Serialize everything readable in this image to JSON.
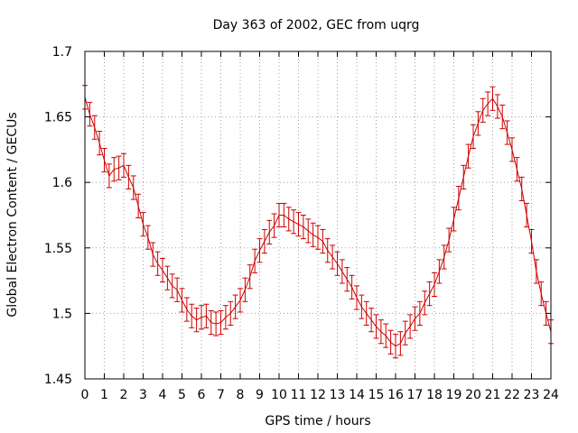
{
  "chart_data": {
    "type": "line",
    "title": "Day 363 of 2002, GEC from uqrg",
    "xlabel": "GPS time / hours",
    "ylabel": "Global Electron Content / GECUs",
    "xlim": [
      0,
      24
    ],
    "ylim": [
      1.45,
      1.7
    ],
    "x_ticks": [
      "0",
      "1",
      "2",
      "3",
      "4",
      "5",
      "6",
      "7",
      "8",
      "9",
      "10",
      "11",
      "12",
      "13",
      "14",
      "15",
      "16",
      "17",
      "18",
      "19",
      "20",
      "21",
      "22",
      "23",
      "24"
    ],
    "y_ticks": [
      "1.45",
      "1.5",
      "1.55",
      "1.6",
      "1.65",
      "1.7"
    ],
    "grid": true,
    "series": [
      {
        "name": "GEC",
        "color": "#cc0000",
        "error": 0.009,
        "points": [
          [
            0.0,
            1.665
          ],
          [
            0.25,
            1.652
          ],
          [
            0.5,
            1.642
          ],
          [
            0.75,
            1.63
          ],
          [
            1.0,
            1.617
          ],
          [
            1.25,
            1.605
          ],
          [
            1.5,
            1.61
          ],
          [
            1.75,
            1.611
          ],
          [
            2.0,
            1.613
          ],
          [
            2.25,
            1.604
          ],
          [
            2.5,
            1.596
          ],
          [
            2.75,
            1.582
          ],
          [
            3.0,
            1.568
          ],
          [
            3.25,
            1.558
          ],
          [
            3.5,
            1.545
          ],
          [
            3.75,
            1.538
          ],
          [
            4.0,
            1.533
          ],
          [
            4.25,
            1.527
          ],
          [
            4.5,
            1.521
          ],
          [
            4.75,
            1.518
          ],
          [
            5.0,
            1.51
          ],
          [
            5.25,
            1.503
          ],
          [
            5.5,
            1.498
          ],
          [
            5.75,
            1.495
          ],
          [
            6.0,
            1.497
          ],
          [
            6.25,
            1.498
          ],
          [
            6.5,
            1.493
          ],
          [
            6.75,
            1.492
          ],
          [
            7.0,
            1.493
          ],
          [
            7.25,
            1.497
          ],
          [
            7.5,
            1.5
          ],
          [
            7.75,
            1.505
          ],
          [
            8.0,
            1.51
          ],
          [
            8.25,
            1.518
          ],
          [
            8.5,
            1.528
          ],
          [
            8.75,
            1.54
          ],
          [
            9.0,
            1.548
          ],
          [
            9.25,
            1.555
          ],
          [
            9.5,
            1.562
          ],
          [
            9.75,
            1.567
          ],
          [
            10.0,
            1.575
          ],
          [
            10.25,
            1.575
          ],
          [
            10.5,
            1.572
          ],
          [
            10.75,
            1.57
          ],
          [
            11.0,
            1.568
          ],
          [
            11.25,
            1.566
          ],
          [
            11.5,
            1.563
          ],
          [
            11.75,
            1.56
          ],
          [
            12.0,
            1.558
          ],
          [
            12.25,
            1.555
          ],
          [
            12.5,
            1.548
          ],
          [
            12.75,
            1.543
          ],
          [
            13.0,
            1.538
          ],
          [
            13.25,
            1.532
          ],
          [
            13.5,
            1.526
          ],
          [
            13.75,
            1.52
          ],
          [
            14.0,
            1.512
          ],
          [
            14.25,
            1.505
          ],
          [
            14.5,
            1.5
          ],
          [
            14.75,
            1.495
          ],
          [
            15.0,
            1.49
          ],
          [
            15.25,
            1.486
          ],
          [
            15.5,
            1.483
          ],
          [
            15.75,
            1.478
          ],
          [
            16.0,
            1.475
          ],
          [
            16.25,
            1.477
          ],
          [
            16.5,
            1.485
          ],
          [
            16.75,
            1.49
          ],
          [
            17.0,
            1.496
          ],
          [
            17.25,
            1.5
          ],
          [
            17.5,
            1.508
          ],
          [
            17.75,
            1.515
          ],
          [
            18.0,
            1.522
          ],
          [
            18.25,
            1.532
          ],
          [
            18.5,
            1.543
          ],
          [
            18.75,
            1.556
          ],
          [
            19.0,
            1.572
          ],
          [
            19.25,
            1.588
          ],
          [
            19.5,
            1.604
          ],
          [
            19.75,
            1.62
          ],
          [
            20.0,
            1.635
          ],
          [
            20.25,
            1.645
          ],
          [
            20.5,
            1.655
          ],
          [
            20.75,
            1.66
          ],
          [
            21.0,
            1.664
          ],
          [
            21.25,
            1.658
          ],
          [
            21.5,
            1.65
          ],
          [
            21.75,
            1.638
          ],
          [
            22.0,
            1.625
          ],
          [
            22.25,
            1.61
          ],
          [
            22.5,
            1.595
          ],
          [
            22.75,
            1.575
          ],
          [
            23.0,
            1.555
          ],
          [
            23.25,
            1.532
          ],
          [
            23.5,
            1.515
          ],
          [
            23.75,
            1.5
          ],
          [
            24.0,
            1.486
          ]
        ]
      }
    ]
  }
}
